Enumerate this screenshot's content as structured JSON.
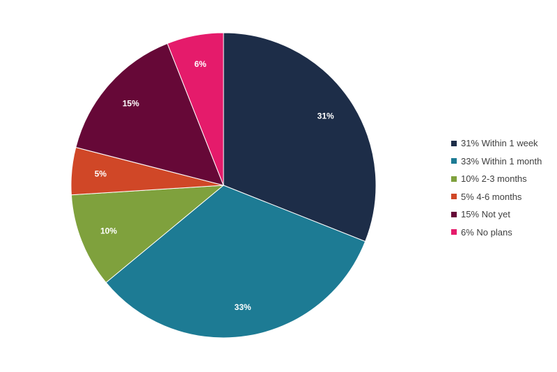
{
  "chart_data": {
    "type": "pie",
    "title": "",
    "slices": [
      {
        "name": "Within 1 week",
        "value": 31,
        "label": "31%",
        "legend": "31% Within 1 week",
        "color": "#1d2d48"
      },
      {
        "name": "Within 1 month",
        "value": 33,
        "label": "33%",
        "legend": "33% Within 1 month",
        "color": "#1d7b94"
      },
      {
        "name": "2-3 months",
        "value": 10,
        "label": "10%",
        "legend": "10% 2-3 months",
        "color": "#7fa13d"
      },
      {
        "name": "4-6 months",
        "value": 5,
        "label": "5%",
        "legend": "5% 4-6 months",
        "color": "#d04727"
      },
      {
        "name": "Not yet",
        "value": 15,
        "label": "15%",
        "legend": "15% Not yet",
        "color": "#660837"
      },
      {
        "name": "No plans",
        "value": 6,
        "label": "6%",
        "legend": "6% No plans",
        "color": "#e51b6b"
      }
    ],
    "start": "12 o'clock",
    "direction": "clockwise",
    "legend_position": "right"
  }
}
